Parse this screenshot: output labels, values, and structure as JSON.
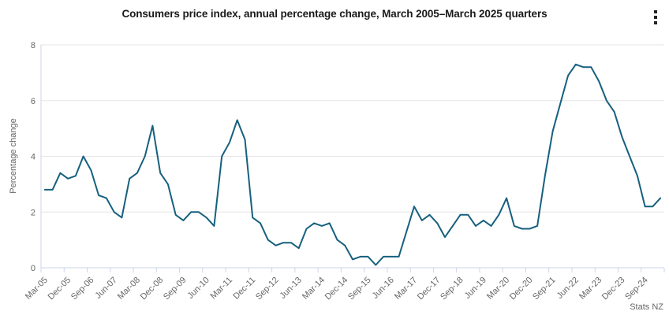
{
  "header": {
    "title": "Consumers price index, annual percentage change, March 2005–March 2025 quarters"
  },
  "menu": {
    "icon": "kebab-menu"
  },
  "footer": {
    "attribution": "Stats NZ"
  },
  "colors": {
    "line": "#16607E",
    "grid": "#E6E6E6",
    "axis": "#CCD6EB",
    "tick": "#CCD6EB",
    "label_text": "#666666",
    "title_text": "#1A1A1A"
  },
  "chart_data": {
    "type": "line",
    "title": "Consumers price index, annual percentage change, March 2005–March 2025 quarters",
    "xlabel": "",
    "ylabel": "Percentage change",
    "ylim": [
      0,
      8
    ],
    "yticks": [
      0,
      2,
      4,
      6,
      8
    ],
    "grid": true,
    "legend": false,
    "x_tick_step": 3,
    "x_tick_labels": [
      "Mar-05",
      "Dec-05",
      "Sep-06",
      "Jun-07",
      "Mar-08",
      "Dec-08",
      "Sep-09",
      "Jun-10",
      "Mar-11",
      "Dec-11",
      "Sep-12",
      "Jun-13",
      "Mar-14",
      "Dec-14",
      "Sep-15",
      "Jun-16",
      "Mar-17",
      "Dec-17",
      "Sep-18",
      "Jun-19",
      "Mar-20",
      "Dec-20",
      "Sep-21",
      "Jun-22",
      "Mar-23",
      "Dec-23",
      "Sep-24"
    ],
    "categories": [
      "Mar-05",
      "Jun-05",
      "Sep-05",
      "Dec-05",
      "Mar-06",
      "Jun-06",
      "Sep-06",
      "Dec-06",
      "Mar-07",
      "Jun-07",
      "Sep-07",
      "Dec-07",
      "Mar-08",
      "Jun-08",
      "Sep-08",
      "Dec-08",
      "Mar-09",
      "Jun-09",
      "Sep-09",
      "Dec-09",
      "Mar-10",
      "Jun-10",
      "Sep-10",
      "Dec-10",
      "Mar-11",
      "Jun-11",
      "Sep-11",
      "Dec-11",
      "Mar-12",
      "Jun-12",
      "Sep-12",
      "Dec-12",
      "Mar-13",
      "Jun-13",
      "Sep-13",
      "Dec-13",
      "Mar-14",
      "Jun-14",
      "Sep-14",
      "Dec-14",
      "Mar-15",
      "Jun-15",
      "Sep-15",
      "Dec-15",
      "Mar-16",
      "Jun-16",
      "Sep-16",
      "Dec-16",
      "Mar-17",
      "Jun-17",
      "Sep-17",
      "Dec-17",
      "Mar-18",
      "Jun-18",
      "Sep-18",
      "Dec-18",
      "Mar-19",
      "Jun-19",
      "Sep-19",
      "Dec-19",
      "Mar-20",
      "Jun-20",
      "Sep-20",
      "Dec-20",
      "Mar-21",
      "Jun-21",
      "Sep-21",
      "Dec-21",
      "Mar-22",
      "Jun-22",
      "Sep-22",
      "Dec-22",
      "Mar-23",
      "Jun-23",
      "Sep-23",
      "Dec-23",
      "Mar-24",
      "Jun-24",
      "Sep-24",
      "Dec-24",
      "Mar-25"
    ],
    "series": [
      {
        "name": "CPI annual percentage change",
        "color": "#16607E",
        "values": [
          2.8,
          2.8,
          3.4,
          3.2,
          3.3,
          4.0,
          3.5,
          2.6,
          2.5,
          2.0,
          1.8,
          3.2,
          3.4,
          4.0,
          5.1,
          3.4,
          3.0,
          1.9,
          1.7,
          2.0,
          2.0,
          1.8,
          1.5,
          4.0,
          4.5,
          5.3,
          4.6,
          1.8,
          1.6,
          1.0,
          0.8,
          0.9,
          0.9,
          0.7,
          1.4,
          1.6,
          1.5,
          1.6,
          1.0,
          0.8,
          0.3,
          0.4,
          0.4,
          0.1,
          0.4,
          0.4,
          0.4,
          1.3,
          2.2,
          1.7,
          1.9,
          1.6,
          1.1,
          1.5,
          1.9,
          1.9,
          1.5,
          1.7,
          1.5,
          1.9,
          2.5,
          1.5,
          1.4,
          1.4,
          1.5,
          3.3,
          4.9,
          5.9,
          6.9,
          7.3,
          7.2,
          7.2,
          6.7,
          6.0,
          5.6,
          4.7,
          4.0,
          3.3,
          2.2,
          2.2,
          2.5
        ]
      }
    ]
  }
}
